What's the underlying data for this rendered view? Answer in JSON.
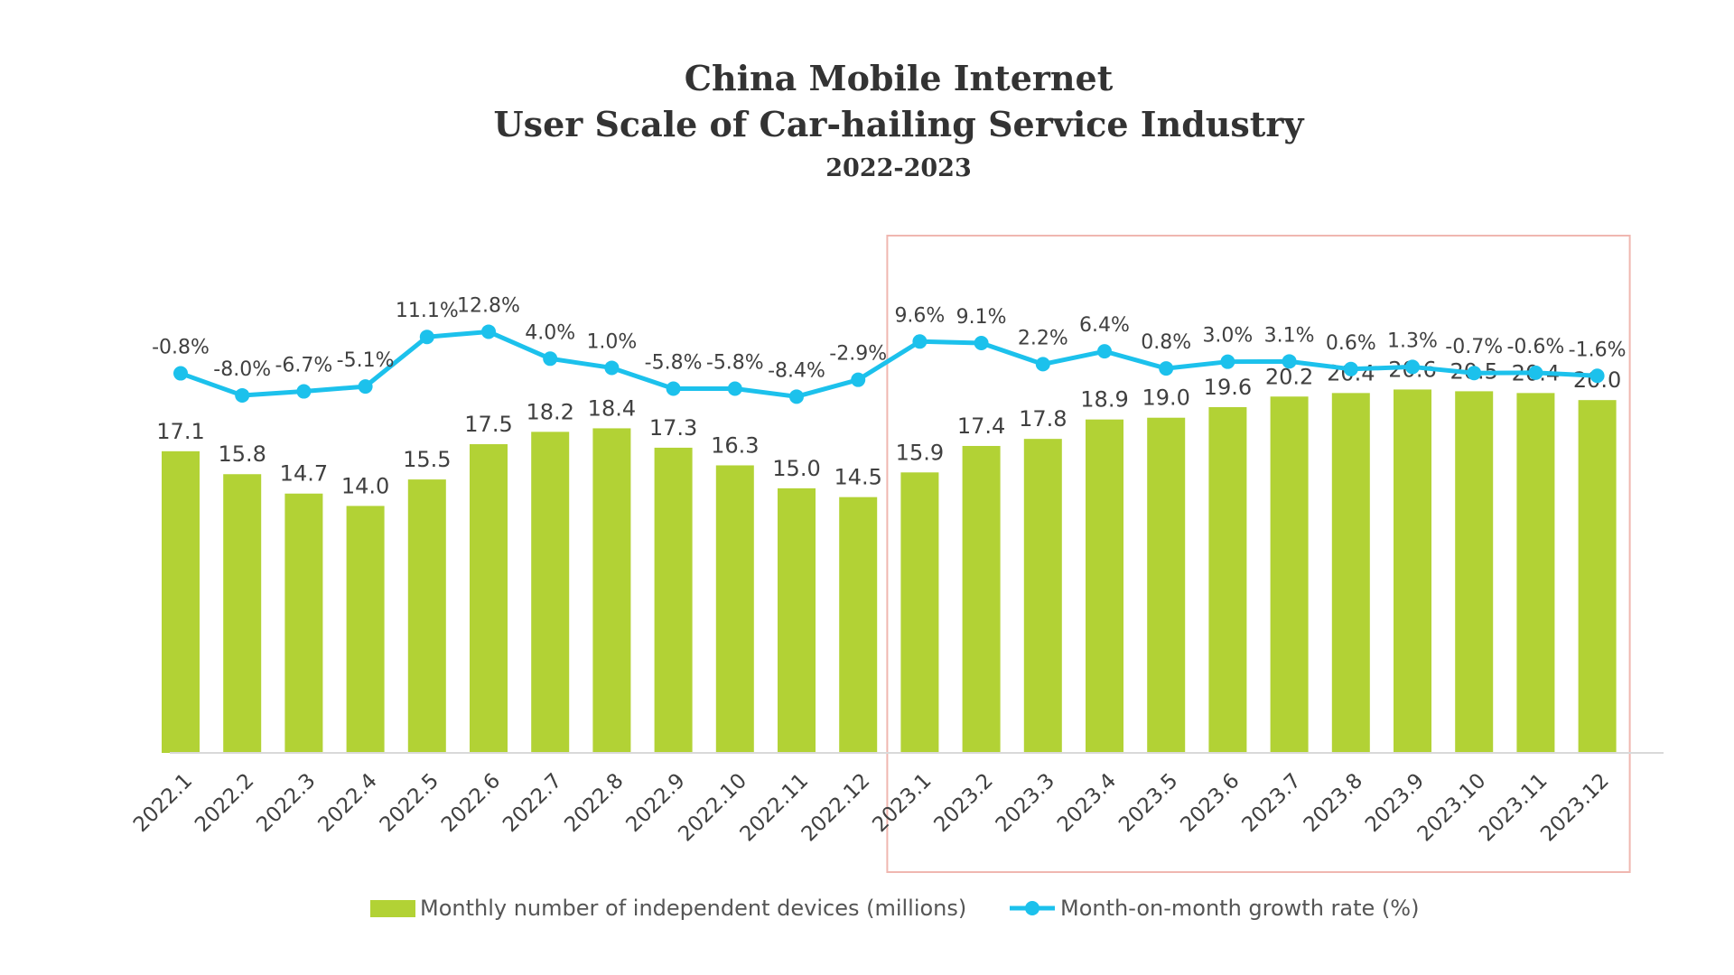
{
  "chart_data": {
    "type": "bar",
    "title_line1": "China Mobile Internet",
    "title_line2": "User Scale of Car-hailing Service Industry",
    "subtitle": "2022-2023",
    "categories": [
      "2022.1",
      "2022.2",
      "2022.3",
      "2022.4",
      "2022.5",
      "2022.6",
      "2022.7",
      "2022.8",
      "2022.9",
      "2022.10",
      "2022.11",
      "2022.12",
      "2023.1",
      "2023.2",
      "2023.3",
      "2023.4",
      "2023.5",
      "2023.6",
      "2023.7",
      "2023.8",
      "2023.9",
      "2023.10",
      "2023.11",
      "2023.12"
    ],
    "series": [
      {
        "name": "Monthly number of independent devices (millions)",
        "type": "bar",
        "color": "#b2d235",
        "values": [
          17.1,
          15.8,
          14.7,
          14.0,
          15.5,
          17.5,
          18.2,
          18.4,
          17.3,
          16.3,
          15.0,
          14.5,
          15.9,
          17.4,
          17.8,
          18.9,
          19.0,
          19.6,
          20.2,
          20.4,
          20.6,
          20.5,
          20.4,
          20.0
        ],
        "labels": [
          "17.1",
          "15.8",
          "14.7",
          "14.0",
          "15.5",
          "17.5",
          "18.2",
          "18.4",
          "17.3",
          "16.3",
          "15.0",
          "14.5",
          "15.9",
          "17.4",
          "17.8",
          "18.9",
          "19.0",
          "19.6",
          "20.2",
          "20.4",
          "20.6",
          "20.5",
          "20.4",
          "20.0"
        ]
      },
      {
        "name": "Month-on-month growth rate (%)",
        "type": "line",
        "color": "#1cc1ec",
        "values": [
          -0.8,
          -8.0,
          -6.7,
          -5.1,
          11.1,
          12.8,
          4.0,
          1.0,
          -5.8,
          -5.8,
          -8.4,
          -2.9,
          9.6,
          9.1,
          2.2,
          6.4,
          0.8,
          3.0,
          3.1,
          0.6,
          1.3,
          -0.7,
          -0.6,
          -1.6
        ],
        "labels": [
          "-0.8%",
          "-8.0%",
          "-6.7%",
          "-5.1%",
          "11.1%",
          "12.8%",
          "4.0%",
          "1.0%",
          "-5.8%",
          "-5.8%",
          "-8.4%",
          "-2.9%",
          "9.6%",
          "9.1%",
          "2.2%",
          "6.4%",
          "0.8%",
          "3.0%",
          "3.1%",
          "0.6%",
          "1.3%",
          "-0.7%",
          "-0.6%",
          "-1.6%"
        ]
      }
    ],
    "highlight": {
      "from": "2023.1",
      "to": "2023.12",
      "color": "#f0b7b0"
    },
    "ylim_bar": [
      0,
      24
    ],
    "ylim_line": [
      -80,
      15
    ],
    "grid": false,
    "legend_position": "bottom-center"
  }
}
